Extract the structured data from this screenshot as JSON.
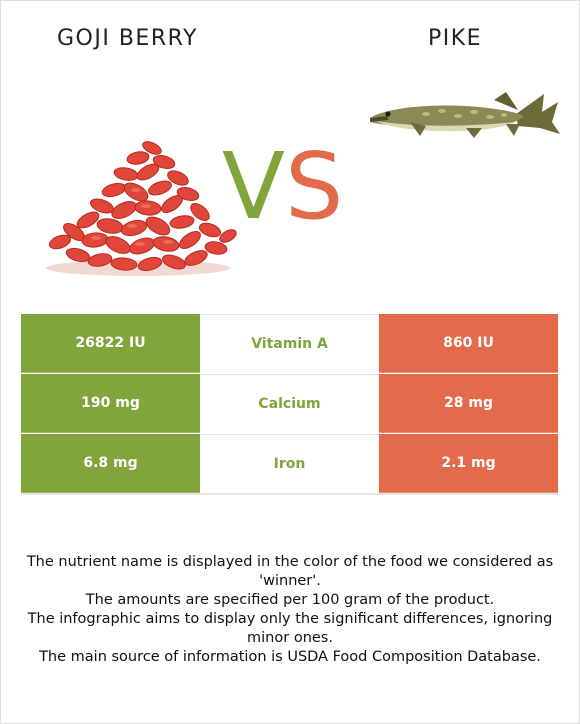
{
  "foods": {
    "left": {
      "name": "GOJI BERRY",
      "color": "#7fa53b",
      "image_icon": "goji-berry-pile"
    },
    "right": {
      "name": "PIKE",
      "color": "#e36a4b",
      "image_icon": "pike-fish"
    }
  },
  "vs": {
    "v": "V",
    "s": "S"
  },
  "nutrients": [
    {
      "name": "Vitamin A",
      "left": "26822 IU",
      "right": "860 IU",
      "winner": "left"
    },
    {
      "name": "Calcium",
      "left": "190 mg",
      "right": "28 mg",
      "winner": "left"
    },
    {
      "name": "Iron",
      "left": "6.8 mg",
      "right": "2.1 mg",
      "winner": "left"
    }
  ],
  "notes": [
    "The nutrient name is displayed in the color of the food we considered as 'winner'.",
    "The amounts are specified per 100 gram of the product.",
    "The infographic aims to display only the significant differences, ignoring minor ones.",
    "The main source of information is USDA Food Composition Database."
  ]
}
